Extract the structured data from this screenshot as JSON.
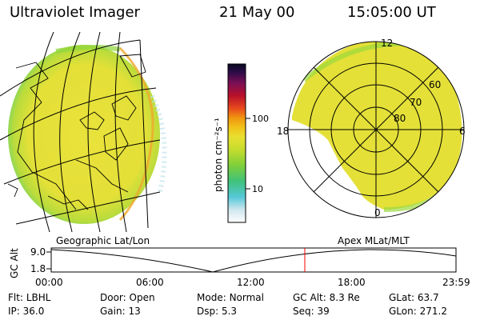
{
  "header": {
    "title": "Ultraviolet Imager",
    "date": "21 May 00",
    "time": "15:05:00 UT"
  },
  "colorbar": {
    "unit_label": "photon cm⁻²s⁻¹",
    "ticks": [
      "100",
      "10"
    ]
  },
  "panels": {
    "left_label": "Geographic Lat/Lon",
    "right_label": "Apex MLat/MLT"
  },
  "polar": {
    "mlt_labels": [
      "12",
      "18",
      "6",
      "0"
    ],
    "lat_labels": [
      "60",
      "70",
      "80"
    ]
  },
  "timeline": {
    "axis_title": "GC Alt",
    "y_labels": [
      "9.0",
      "1.8"
    ],
    "x_labels": [
      "00:00",
      "06:00",
      "12:00",
      "18:00",
      "23:59"
    ],
    "marker_time": "15:05"
  },
  "info": {
    "row1": [
      {
        "label": "Flt:",
        "value": "LBHL"
      },
      {
        "label": "Door:",
        "value": "Open"
      },
      {
        "label": "Mode:",
        "value": "Normal"
      },
      {
        "label": "GC Alt:",
        "value": "8.3 Re"
      },
      {
        "label": "GLat:",
        "value": "63.7"
      }
    ],
    "row2": [
      {
        "label": "IP:",
        "value": "36.0"
      },
      {
        "label": "Gain:",
        "value": "13"
      },
      {
        "label": "Dsp:",
        "value": "5.3"
      },
      {
        "label": "Seq:",
        "value": "39"
      },
      {
        "label": "GLon:",
        "value": "271.2"
      }
    ]
  },
  "colors": {
    "emission_main": "#e8e23a",
    "emission_green": "#8fd63a",
    "emission_edge": "#5fcf6b",
    "marker": "#ff0000"
  }
}
